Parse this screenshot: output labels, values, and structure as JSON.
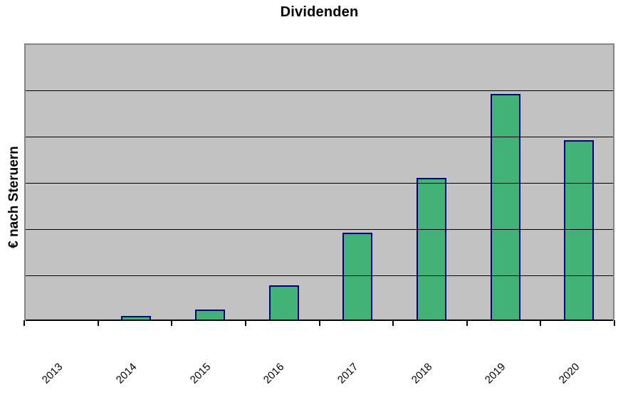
{
  "chart_data": {
    "type": "bar",
    "title": "Dividenden",
    "xlabel": "",
    "ylabel": "€ nach Steruern",
    "categories": [
      "2013",
      "2014",
      "2015",
      "2016",
      "2017",
      "2018",
      "2019",
      "2020"
    ],
    "values": [
      0,
      0.09,
      0.23,
      0.76,
      1.9,
      3.09,
      4.91,
      3.91
    ],
    "ylim": [
      0,
      6
    ],
    "y_divisions": 6,
    "y_tick_labels_visible": false,
    "grid": "horizontal-black-over-bars",
    "legend": "none",
    "x_label_rotation_deg": -45
  },
  "colors": {
    "bar_fill": "#42b278",
    "bar_border": "#000080",
    "plot_background": "#c2c2c2",
    "plot_border": "#868686",
    "gridline": "#000000",
    "axis": "#000000",
    "text": "#000000",
    "page_background": "#ffffff"
  }
}
